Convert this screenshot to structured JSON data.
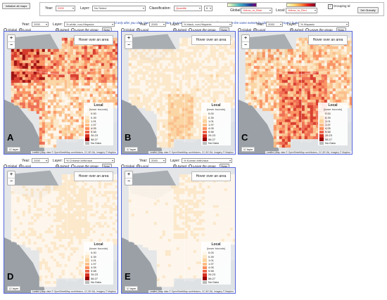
{
  "top": {
    "init_label": "Initialize all maps",
    "year_label": "Year:",
    "year_value": "2000",
    "layer_label": "Layer:",
    "layer_value": "No Select",
    "class_label": "Classification:",
    "class_value": "Quantile",
    "class_count": "8",
    "global_label": "Global:",
    "global_value": "Yellow_to_Blue",
    "local_label": "Local:",
    "local_value": "Yellow_to_Red",
    "grouping_label": "Grouping td",
    "set_globally_label": "Set Globally",
    "note": "The selections above are valid only after you click \"Set Globally\" button. To enable \"Set Globally\", make all maps have the same extents by clicking one of \"Sync\" buttons below."
  },
  "controls": {
    "year_label": "Year:",
    "layer_label": "Layer:",
    "global_label": "Global",
    "local_label": "Local",
    "joined_label": "Joined",
    "leave_label": "Leave the group",
    "sync_label": "Sync"
  },
  "maps": [
    {
      "letter": "A",
      "year": "2000",
      "layer": "% white, non-Hispanic",
      "scheme": "white"
    },
    {
      "letter": "B",
      "year": "2000",
      "layer": "% black, non-Hispanic",
      "scheme": "black"
    },
    {
      "letter": "C",
      "year": "2000",
      "layer": "% Hispanic",
      "scheme": "hispanic"
    },
    {
      "letter": "D",
      "year": "2000",
      "layer": "% Chinese birth/race",
      "scheme": "chinese"
    },
    {
      "letter": "E",
      "year": "2000",
      "layer": "% Korean birth/race",
      "scheme": "korean"
    }
  ],
  "map_common": {
    "hover_text": "Hover over an area",
    "legend_title": "Local",
    "legend_subtitle": "(lower bounds)",
    "legend_values": [
      "0.00",
      "0.39",
      "1.01",
      "1.97",
      "4.05",
      "9.58",
      "26.23",
      "58.27",
      "No Data"
    ],
    "legend_colors": [
      "#fff7ec",
      "#fee8c8",
      "#fdd49e",
      "#fdbb84",
      "#fc8d59",
      "#ef6548",
      "#d7301f",
      "#990000",
      "#bbbbbb"
    ],
    "layer_toggle": "layer",
    "attribution": "Leaflet | Map data © OpenStreetMap contributors, CC-BY-SA, Imagery © Mapbox"
  }
}
